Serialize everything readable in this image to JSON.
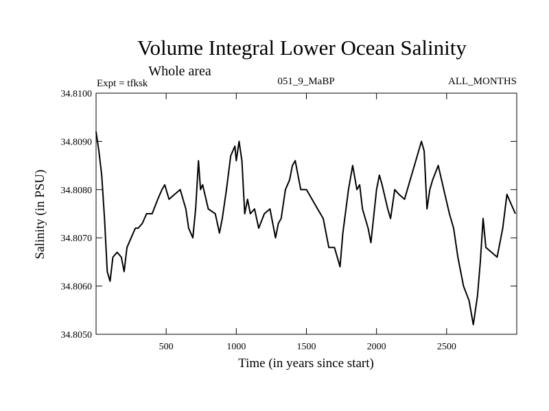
{
  "chart_data": {
    "type": "line",
    "title": "Volume Integral Lower Ocean Salinity",
    "subtitle": "Whole area",
    "expt_label": "Expt = tfksk",
    "run_label": "051_9_MaBP",
    "months_label": "ALL_MONTHS",
    "xlabel": "Time (in years since start)",
    "ylabel": "Salinity (in PSU)",
    "xlim": [
      0,
      3000
    ],
    "ylim": [
      34.805,
      34.81
    ],
    "xticks": [
      500,
      1000,
      1500,
      2000,
      2500
    ],
    "xtick_labels": [
      "500",
      "1000",
      "1500",
      "2000",
      "2500"
    ],
    "yticks": [
      34.805,
      34.806,
      34.807,
      34.808,
      34.809,
      34.81
    ],
    "ytick_labels": [
      "34.8050",
      "34.8060",
      "34.8070",
      "34.8080",
      "34.8090",
      "34.8100"
    ],
    "grid": false,
    "series": [
      {
        "name": "salinity",
        "x": [
          0,
          20,
          40,
          60,
          80,
          100,
          120,
          150,
          180,
          200,
          220,
          250,
          280,
          300,
          330,
          360,
          400,
          440,
          470,
          490,
          520,
          560,
          600,
          640,
          660,
          690,
          710,
          730,
          745,
          760,
          800,
          850,
          880,
          900,
          930,
          960,
          990,
          1000,
          1020,
          1040,
          1060,
          1080,
          1100,
          1130,
          1160,
          1200,
          1240,
          1280,
          1300,
          1320,
          1350,
          1380,
          1400,
          1420,
          1440,
          1460,
          1500,
          1540,
          1580,
          1620,
          1660,
          1700,
          1740,
          1760,
          1800,
          1830,
          1860,
          1880,
          1900,
          1940,
          1960,
          2000,
          2020,
          2040,
          2080,
          2100,
          2130,
          2160,
          2200,
          2240,
          2280,
          2320,
          2340,
          2360,
          2380,
          2400,
          2440,
          2480,
          2520,
          2550,
          2580,
          2620,
          2660,
          2690,
          2720,
          2740,
          2760,
          2780,
          2820,
          2860,
          2900,
          2930,
          2960,
          2990
        ],
        "y": [
          34.8092,
          34.8088,
          34.8083,
          34.8074,
          34.8063,
          34.8061,
          34.8066,
          34.8067,
          34.8066,
          34.8063,
          34.8068,
          34.807,
          34.8072,
          34.8072,
          34.8073,
          34.8075,
          34.8075,
          34.8078,
          34.808,
          34.8081,
          34.8078,
          34.8079,
          34.808,
          34.8076,
          34.8072,
          34.807,
          34.8076,
          34.8086,
          34.808,
          34.8081,
          34.8076,
          34.8075,
          34.8071,
          34.8074,
          34.808,
          34.8087,
          34.8089,
          34.8086,
          34.809,
          34.8086,
          34.8075,
          34.8078,
          34.8075,
          34.8076,
          34.8072,
          34.8075,
          34.8076,
          34.807,
          34.8073,
          34.8074,
          34.808,
          34.8082,
          34.8085,
          34.8086,
          34.8083,
          34.808,
          34.808,
          34.8078,
          34.8076,
          34.8074,
          34.8068,
          34.8068,
          34.8064,
          34.8071,
          34.808,
          34.8085,
          34.808,
          34.8081,
          34.8076,
          34.8072,
          34.8069,
          34.808,
          34.8083,
          34.8081,
          34.8076,
          34.8074,
          34.808,
          34.8079,
          34.8078,
          34.8082,
          34.8086,
          34.809,
          34.8088,
          34.8076,
          34.808,
          34.8082,
          34.8085,
          34.808,
          34.8075,
          34.8072,
          34.8066,
          34.806,
          34.8057,
          34.8052,
          34.8058,
          34.8065,
          34.8074,
          34.8068,
          34.8067,
          34.8066,
          34.8072,
          34.8079,
          34.8077,
          34.8075
        ]
      }
    ]
  }
}
